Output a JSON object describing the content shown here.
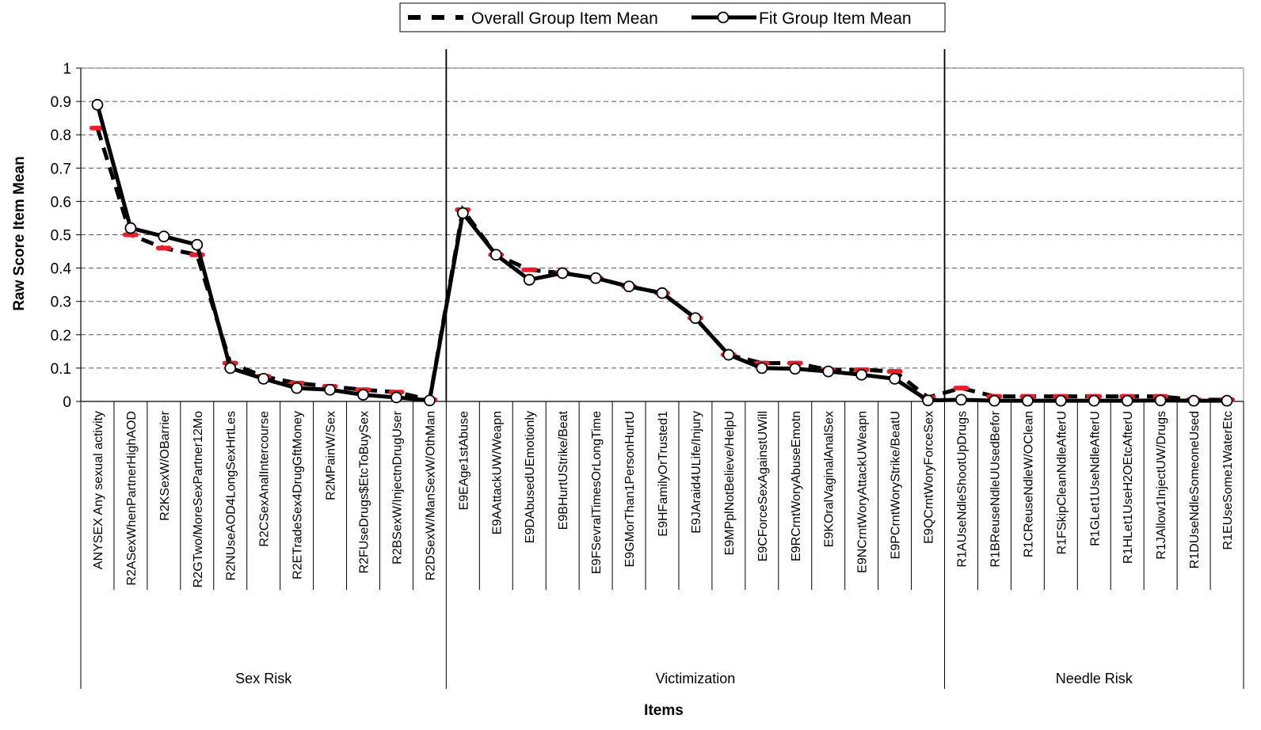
{
  "chart_data": {
    "type": "line",
    "xlabel": "Items",
    "ylabel": "Raw Score Item Mean",
    "ylim": [
      0,
      1
    ],
    "yticks": [
      0,
      0.1,
      0.2,
      0.3,
      0.4,
      0.5,
      0.6,
      0.7,
      0.8,
      0.9,
      1
    ],
    "grid": true,
    "legend_position": "top-center",
    "categories": [
      "ANYSEX Any sexual activity",
      "R2ASexWhenPartnerHighAOD",
      "R2KSexW/OBarrier",
      "R2GTwo/MoreSexPartner12Mo",
      "R2NUseAOD4LongSexHrtLes",
      "R2CSexAnalIntercourse",
      "R2ETradeSex4DrugGftMoney",
      "R2MPainW/Sex",
      "R2FUseDrugs$EtcToBuySex",
      "R2BSexW/InjectnDrugUser",
      "R2DSexW/ManSexW/OthMan",
      "E9EAge1stAbuse",
      "E9AAttackUW/Weapn",
      "E9DAbusedUEmotionly",
      "E9BHurtUStrike/Beat",
      "E9FSevralTimesOrLongTime",
      "E9GMorThan1PersonHurtU",
      "E9HFamilyOrTrusted1",
      "E9JAraid4ULife/Injury",
      "E9MPplNotBelieve/HelpU",
      "E9CForceSexAgainstUWill",
      "E9RCrntWoryAbuseEmotn",
      "E9KOralVaginalAnalSex",
      "E9NCrntWoryAttackUWeapn",
      "E9PCrntWoryStrike/BeatU",
      "E9QCrntWoryForceSex",
      "R1AUseNdleShootUpDrugs",
      "R1BReuseNdleUUsedBefor",
      "R1CReuseNdleW/OClean",
      "R1FSkipCleanNdleAfterU",
      "R1GLet1UseNdleAfterU",
      "R1HLet1UseH2OEtcAfterU",
      "R1JAllow1InjectUW/Drugs",
      "R1DUseNdleSomeoneUsed",
      "R1EUseSome1WaterEtc"
    ],
    "groups": [
      {
        "name": "Sex Risk",
        "start": 0,
        "count": 11
      },
      {
        "name": "Victimization",
        "start": 11,
        "count": 15
      },
      {
        "name": "Needle Risk",
        "start": 26,
        "count": 9
      }
    ],
    "series": [
      {
        "name": "Overall Group Item Mean",
        "style": "dashed",
        "color": "#000000",
        "marker_color": "#e8202a",
        "values": [
          0.82,
          0.5,
          0.46,
          0.44,
          0.115,
          0.075,
          0.055,
          0.045,
          0.035,
          0.028,
          0.005,
          0.575,
          0.44,
          0.395,
          0.385,
          0.37,
          0.345,
          0.325,
          0.25,
          0.14,
          0.115,
          0.115,
          0.095,
          0.095,
          0.09,
          0.012,
          0.04,
          0.015,
          0.015,
          0.015,
          0.015,
          0.015,
          0.015,
          0.005,
          0.005
        ]
      },
      {
        "name": "Fit Group Item Mean",
        "style": "solid",
        "color": "#000000",
        "marker": "circle",
        "values": [
          0.89,
          0.52,
          0.495,
          0.47,
          0.1,
          0.068,
          0.04,
          0.035,
          0.02,
          0.012,
          0.003,
          0.565,
          0.44,
          0.365,
          0.385,
          0.37,
          0.345,
          0.325,
          0.25,
          0.14,
          0.1,
          0.098,
          0.09,
          0.08,
          0.068,
          0.003,
          0.005,
          0.002,
          0.002,
          0.002,
          0.002,
          0.002,
          0.003,
          0.002,
          0.002
        ]
      }
    ]
  }
}
